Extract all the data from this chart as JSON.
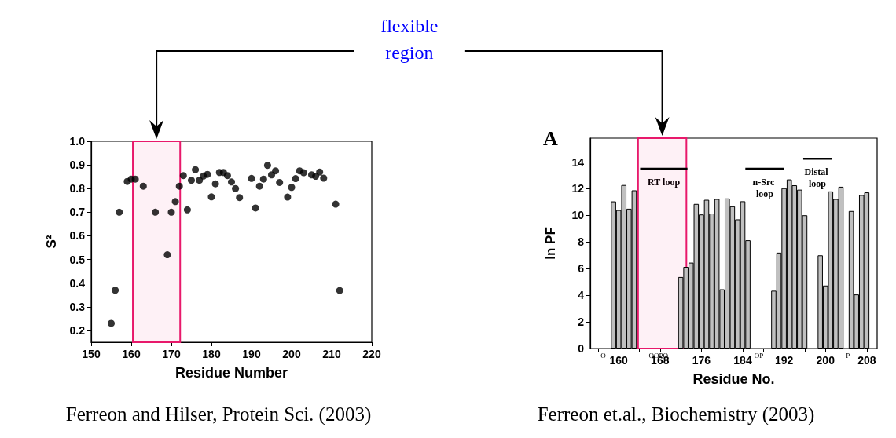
{
  "chart_data": [
    {
      "type": "scatter",
      "xlabel": "Residue Number",
      "ylabel": "S²",
      "color": "#000000",
      "marker": "circle",
      "grid": false,
      "x": [
        155,
        156,
        157,
        159,
        160,
        161,
        163,
        166,
        169,
        170,
        171,
        172,
        173,
        174,
        175,
        176,
        177,
        178,
        179,
        180,
        181,
        182,
        183,
        184,
        185,
        186,
        187,
        190,
        191,
        192,
        193,
        194,
        195,
        196,
        197,
        199,
        200,
        201,
        202,
        203,
        205,
        206,
        207,
        208,
        211,
        212
      ],
      "values": [
        0.23,
        0.37,
        0.7,
        0.83,
        0.84,
        0.84,
        0.81,
        0.7,
        0.52,
        0.7,
        0.745,
        0.81,
        0.855,
        0.71,
        0.835,
        0.88,
        0.835,
        0.853,
        0.86,
        0.765,
        0.82,
        0.868,
        0.868,
        0.855,
        0.828,
        0.8,
        0.762,
        0.843,
        0.718,
        0.81,
        0.84,
        0.898,
        0.858,
        0.875,
        0.826,
        0.764,
        0.805,
        0.842,
        0.875,
        0.867,
        0.858,
        0.852,
        0.87,
        0.844,
        0.734,
        0.369
      ],
      "xlim": [
        150,
        220
      ],
      "xticks": [
        150,
        160,
        170,
        180,
        190,
        200,
        210,
        220
      ],
      "ylim": [
        0.15,
        1.0
      ],
      "yticks": [
        0.2,
        0.3,
        0.4,
        0.5,
        0.6,
        0.7,
        0.8,
        0.9,
        {
          "value": 1.0,
          "label": "1.0"
        }
      ],
      "bands": [
        {
          "axis": "x",
          "from": 160.4,
          "to": 172.2,
          "color": "#e8196b"
        }
      ],
      "annotations": [
        "Ferreon and Hilser, Protein Sci. (2003)",
        "flexible region"
      ]
    },
    {
      "type": "bar",
      "title": "A",
      "xlabel": "Residue No.",
      "ylabel": "ln PF",
      "grid": false,
      "series": [
        {
          "color": "#c0c0c0",
          "x": [
            159,
            160,
            161,
            162,
            163,
            172,
            173,
            174,
            175,
            176,
            177,
            178,
            179,
            180,
            181,
            182,
            183,
            184,
            185,
            190,
            191,
            192,
            193,
            194,
            195,
            196,
            199,
            200,
            201,
            202,
            203,
            205,
            206,
            207,
            208
          ],
          "values": [
            11.05,
            10.4,
            12.28,
            10.5,
            11.88,
            5.37,
            6.13,
            6.45,
            10.86,
            10.07,
            11.17,
            10.14,
            11.23,
            4.45,
            11.27,
            10.68,
            9.7,
            11.06,
            8.13,
            4.34,
            7.2,
            12.04,
            12.7,
            12.26,
            11.93,
            10.01,
            7.0,
            4.73,
            11.8,
            11.23,
            12.15,
            10.33,
            4.06,
            11.53,
            11.73
          ]
        },
        {
          "type": "line",
          "name": "RT loop",
          "color": "#000000",
          "x": [
            164.15,
            173.3
          ],
          "values": [
            13.5,
            13.5
          ]
        },
        {
          "type": "line",
          "name": "n-Src loop",
          "color": "#000000",
          "x": [
            184.5,
            192
          ],
          "values": [
            13.5,
            13.5
          ]
        },
        {
          "type": "line",
          "name": "Distal loop",
          "color": "#000000",
          "x": [
            195.7,
            201.2
          ],
          "values": [
            14.25,
            14.25
          ]
        }
      ],
      "xlim": [
        154.5,
        210
      ],
      "xticks": [
        {
          "value": 156,
          "label": null
        },
        160,
        {
          "value": 164,
          "label": null
        },
        168,
        {
          "value": 172,
          "label": null
        },
        176,
        {
          "value": 180,
          "label": null
        },
        184,
        {
          "value": 188,
          "label": null
        },
        192,
        {
          "value": 196,
          "label": null
        },
        200,
        {
          "value": 204,
          "label": null
        },
        208
      ],
      "ylim": [
        0,
        15.8
      ],
      "yticks": [
        0,
        2,
        4,
        6,
        8,
        10,
        12,
        14
      ],
      "bands": [
        {
          "axis": "x",
          "from": 163.75,
          "to": 173.1,
          "color": "#e8196b"
        }
      ],
      "annotations": [
        "Ferreon et.al., Biochemistry (2003)",
        "O",
        "OOPO",
        "OP",
        "P"
      ]
    }
  ]
}
